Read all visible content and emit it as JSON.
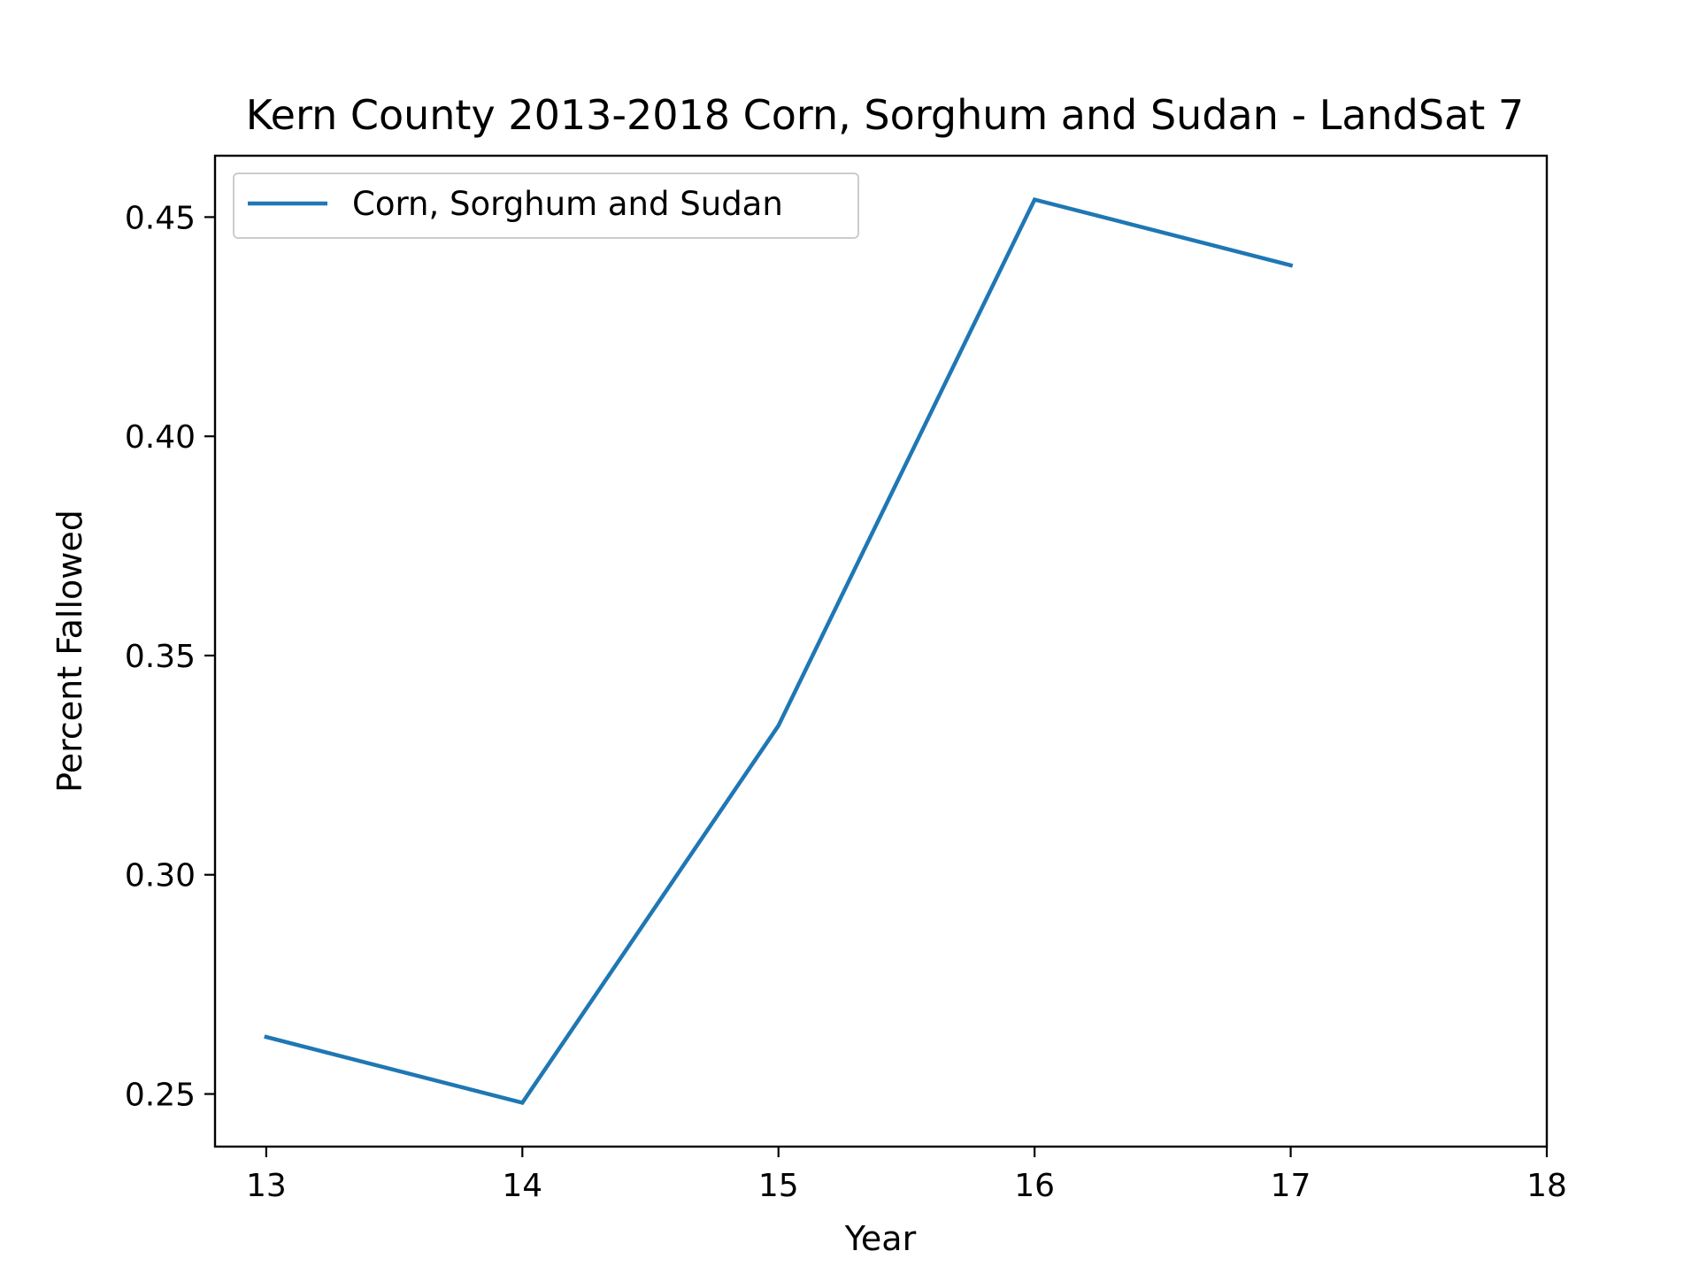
{
  "chart_data": {
    "type": "line",
    "title": "Kern County 2013-2018 Corn, Sorghum and Sudan - LandSat 7",
    "xlabel": "Year",
    "ylabel": "Percent Fallowed",
    "x": [
      13,
      14,
      15,
      16,
      17
    ],
    "series": [
      {
        "name": "Corn, Sorghum and Sudan",
        "color": "#1f77b4",
        "values": [
          0.263,
          0.248,
          0.334,
          0.454,
          0.439
        ]
      }
    ],
    "xlim": [
      12.8,
      18
    ],
    "ylim": [
      0.238,
      0.464
    ],
    "xticks": [
      13,
      14,
      15,
      16,
      17,
      18
    ],
    "xtick_labels": [
      "13",
      "14",
      "15",
      "16",
      "17",
      "18"
    ],
    "yticks": [
      0.25,
      0.3,
      0.35,
      0.4,
      0.45
    ],
    "ytick_labels": [
      "0.25",
      "0.30",
      "0.35",
      "0.40",
      "0.45"
    ],
    "grid": false,
    "legend_position": "top-left"
  }
}
